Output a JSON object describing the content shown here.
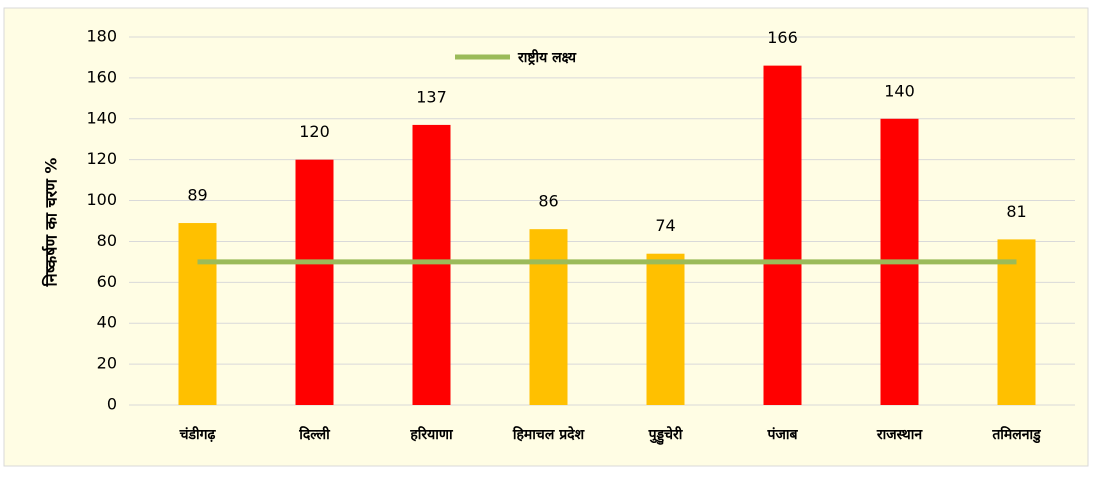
{
  "chart_data": {
    "type": "bar",
    "y_label": "निष्कर्षण का चरण %",
    "categories": [
      "चंडीगढ़",
      "दिल्ली",
      "हरियाणा",
      "हिमाचल प्रदेश",
      "पुड्डुचेरी",
      "पंजाब",
      "राजस्थान",
      "तमिलनाडु"
    ],
    "series": [
      {
        "type": "bar",
        "colors": [
          "#ffc000",
          "#ff0000",
          "#ff0000",
          "#ffc000",
          "#ffc000",
          "#ff0000",
          "#ff0000",
          "#ffc000"
        ],
        "values": [
          89,
          120,
          137,
          86,
          74,
          166,
          140,
          81
        ]
      },
      {
        "type": "line",
        "name": "राष्ट्रीय लक्ष्य",
        "color": "#9bbb59",
        "values": [
          70,
          70,
          70,
          70,
          70,
          70,
          70,
          70
        ]
      }
    ],
    "ylim": [
      0,
      180
    ],
    "yticks": [
      0,
      20,
      40,
      60,
      80,
      100,
      120,
      140,
      160,
      180
    ],
    "grid": true,
    "legend": "top"
  }
}
